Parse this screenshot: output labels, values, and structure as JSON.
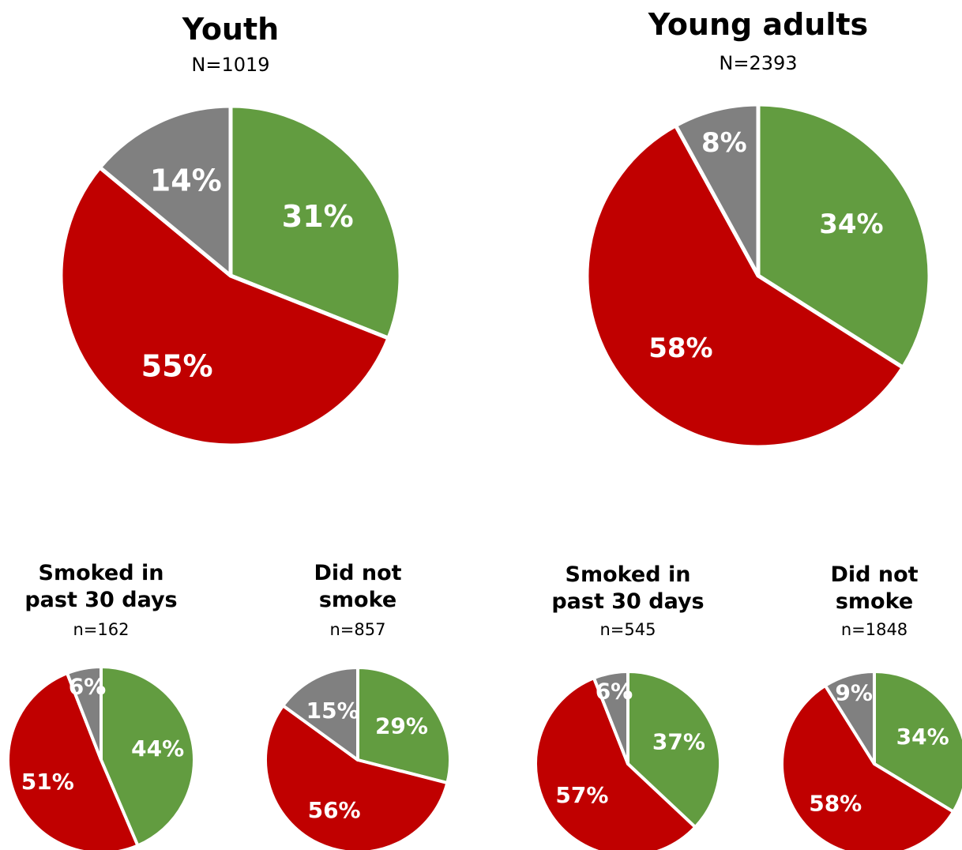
{
  "colors": {
    "green": "#629c40",
    "red": "#c00000",
    "gray": "#808080",
    "border": "#ffffff"
  },
  "chart_data": [
    {
      "type": "pie",
      "title": "Youth",
      "subtitle": "N=1019",
      "slices": [
        {
          "value": 31,
          "label": "31%",
          "color": "#629c40"
        },
        {
          "value": 55,
          "label": "55%",
          "color": "#c00000"
        },
        {
          "value": 14,
          "label": "14%",
          "color": "#808080"
        }
      ]
    },
    {
      "type": "pie",
      "title": "Young adults",
      "subtitle": "N=2393",
      "slices": [
        {
          "value": 34,
          "label": "34%",
          "color": "#629c40"
        },
        {
          "value": 58,
          "label": "58%",
          "color": "#c00000"
        },
        {
          "value": 8,
          "label": "8%",
          "color": "#808080"
        }
      ]
    },
    {
      "type": "pie",
      "title": [
        "Smoked in",
        "past 30 days"
      ],
      "subtitle": "n=162",
      "slices": [
        {
          "value": 44,
          "label": "44%",
          "color": "#629c40"
        },
        {
          "value": 51,
          "label": "51%",
          "color": "#c00000"
        },
        {
          "value": 6,
          "label": "6%",
          "color": "#808080"
        }
      ]
    },
    {
      "type": "pie",
      "title": [
        "Did not",
        "smoke"
      ],
      "subtitle": "n=857",
      "slices": [
        {
          "value": 29,
          "label": "29%",
          "color": "#629c40"
        },
        {
          "value": 56,
          "label": "56%",
          "color": "#c00000"
        },
        {
          "value": 15,
          "label": "15%",
          "color": "#808080"
        }
      ]
    },
    {
      "type": "pie",
      "title": [
        "Smoked in",
        "past 30 days"
      ],
      "subtitle": "n=545",
      "slices": [
        {
          "value": 37,
          "label": "37%",
          "color": "#629c40"
        },
        {
          "value": 57,
          "label": "57%",
          "color": "#c00000"
        },
        {
          "value": 6,
          "label": "6%",
          "color": "#808080"
        }
      ]
    },
    {
      "type": "pie",
      "title": [
        "Did not",
        "smoke"
      ],
      "subtitle": "n=1848",
      "slices": [
        {
          "value": 34,
          "label": "34%",
          "color": "#629c40"
        },
        {
          "value": 58,
          "label": "58%",
          "color": "#c00000"
        },
        {
          "value": 9,
          "label": "9%",
          "color": "#808080"
        }
      ]
    }
  ]
}
